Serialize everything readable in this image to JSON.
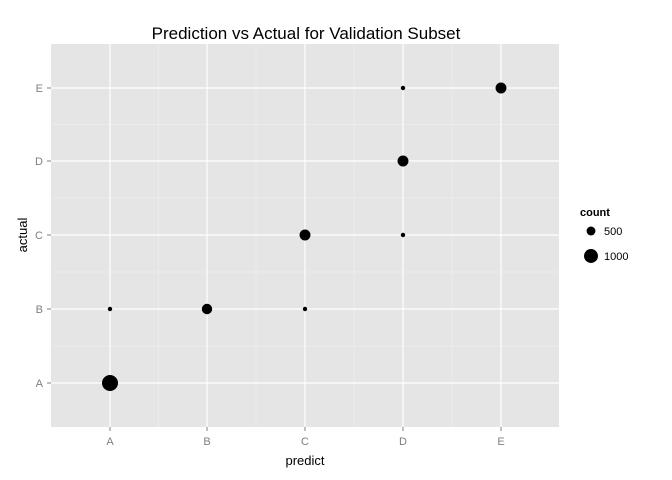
{
  "chart_data": {
    "type": "scatter",
    "title": "Prediction vs Actual for Validation Subset",
    "xlabel": "predict",
    "ylabel": "actual",
    "x_categories": [
      "A",
      "B",
      "C",
      "D",
      "E"
    ],
    "y_categories": [
      "A",
      "B",
      "C",
      "D",
      "E"
    ],
    "grid": true,
    "legend": {
      "title": "count",
      "placement": "right",
      "entries": [
        {
          "label": "500",
          "value": 500
        },
        {
          "label": "1000",
          "value": 1000
        }
      ]
    },
    "points": [
      {
        "x": "A",
        "y": "A",
        "count": 1200
      },
      {
        "x": "A",
        "y": "B",
        "count": 60
      },
      {
        "x": "B",
        "y": "B",
        "count": 650
      },
      {
        "x": "C",
        "y": "B",
        "count": 60
      },
      {
        "x": "C",
        "y": "C",
        "count": 700
      },
      {
        "x": "D",
        "y": "C",
        "count": 60
      },
      {
        "x": "D",
        "y": "D",
        "count": 700
      },
      {
        "x": "D",
        "y": "E",
        "count": 60
      },
      {
        "x": "E",
        "y": "E",
        "count": 700
      }
    ],
    "colors": {
      "panel": "#e5e5e5",
      "grid": "#ffffff",
      "point": "#000000"
    }
  }
}
